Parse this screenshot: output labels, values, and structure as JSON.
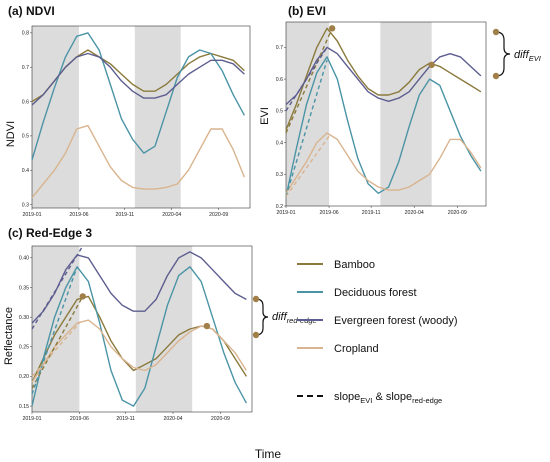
{
  "figure": {
    "xlabel": "Time",
    "ylabel_shared": "Reflectance"
  },
  "colors": {
    "bamboo": "#8b7a3c",
    "deciduous": "#4b94a6",
    "evergreen": "#5d5e8f",
    "cropland": "#d9b48f",
    "shade": "#dcdcdc",
    "marker": "#a08048"
  },
  "legend": {
    "items": [
      {
        "key": "bamboo",
        "label": "Bamboo"
      },
      {
        "key": "deciduous",
        "label": "Deciduous forest"
      },
      {
        "key": "evergreen",
        "label": "Evergreen forest (woody)"
      },
      {
        "key": "cropland",
        "label": "Cropland"
      }
    ],
    "slope_prefix": "slope",
    "slope_sub1": "EVI",
    "slope_amp": " & slope",
    "slope_sub2": "red-edge"
  },
  "annotations": {
    "diff_evi_main": "diff",
    "diff_evi_sub": "EVI",
    "diff_re_main": "diff",
    "diff_re_sub": "red-edge"
  },
  "chart_data": [
    {
      "type": "line",
      "title": "(a) NDVI",
      "ylabel": "NDVI",
      "ylim": [
        0.29,
        0.82
      ],
      "xlim": [
        2019.0,
        2020.95
      ],
      "yticks": [
        0.3,
        0.4,
        0.5,
        0.6,
        0.7,
        0.8
      ],
      "ytick_labels": [
        "0.3",
        "0.4",
        "0.5",
        "0.6",
        "0.7",
        "0.8"
      ],
      "xticks": [
        2019.0,
        2019.42,
        2019.83,
        2020.25,
        2020.67
      ],
      "xtick_labels": [
        "2019-01",
        "2019-06",
        "2019-11",
        "2020-04",
        "2020-09"
      ],
      "shaded": [
        [
          2019.0,
          2019.42
        ],
        [
          2019.92,
          2020.33
        ]
      ],
      "series": [
        {
          "key": "bamboo",
          "x": [
            2019.0,
            2019.1,
            2019.2,
            2019.3,
            2019.4,
            2019.5,
            2019.6,
            2019.7,
            2019.8,
            2019.9,
            2020.0,
            2020.1,
            2020.2,
            2020.3,
            2020.4,
            2020.5,
            2020.6,
            2020.7,
            2020.8,
            2020.9
          ],
          "y": [
            0.6,
            0.62,
            0.66,
            0.7,
            0.73,
            0.75,
            0.73,
            0.71,
            0.68,
            0.65,
            0.63,
            0.63,
            0.65,
            0.68,
            0.71,
            0.73,
            0.74,
            0.73,
            0.72,
            0.69
          ]
        },
        {
          "key": "deciduous",
          "x": [
            2019.0,
            2019.1,
            2019.2,
            2019.3,
            2019.4,
            2019.5,
            2019.6,
            2019.7,
            2019.8,
            2019.9,
            2020.0,
            2020.1,
            2020.2,
            2020.3,
            2020.4,
            2020.5,
            2020.6,
            2020.7,
            2020.8,
            2020.9
          ],
          "y": [
            0.43,
            0.54,
            0.64,
            0.73,
            0.79,
            0.8,
            0.75,
            0.65,
            0.55,
            0.49,
            0.45,
            0.47,
            0.57,
            0.67,
            0.73,
            0.75,
            0.74,
            0.69,
            0.62,
            0.56
          ]
        },
        {
          "key": "evergreen",
          "x": [
            2019.0,
            2019.1,
            2019.2,
            2019.3,
            2019.4,
            2019.5,
            2019.6,
            2019.7,
            2019.8,
            2019.9,
            2020.0,
            2020.1,
            2020.2,
            2020.3,
            2020.4,
            2020.5,
            2020.6,
            2020.7,
            2020.8,
            2020.9
          ],
          "y": [
            0.59,
            0.62,
            0.66,
            0.7,
            0.73,
            0.74,
            0.73,
            0.7,
            0.66,
            0.63,
            0.61,
            0.61,
            0.62,
            0.65,
            0.68,
            0.7,
            0.72,
            0.72,
            0.71,
            0.68
          ]
        },
        {
          "key": "cropland",
          "x": [
            2019.0,
            2019.1,
            2019.2,
            2019.3,
            2019.4,
            2019.5,
            2019.6,
            2019.7,
            2019.8,
            2019.9,
            2020.0,
            2020.1,
            2020.2,
            2020.3,
            2020.4,
            2020.5,
            2020.6,
            2020.7,
            2020.8,
            2020.9
          ],
          "y": [
            0.32,
            0.36,
            0.4,
            0.45,
            0.52,
            0.53,
            0.47,
            0.41,
            0.37,
            0.35,
            0.345,
            0.345,
            0.35,
            0.36,
            0.4,
            0.46,
            0.52,
            0.52,
            0.46,
            0.38
          ]
        }
      ]
    },
    {
      "type": "line",
      "title": "(b) EVI",
      "ylabel": "EVI",
      "ylim": [
        0.2,
        0.78
      ],
      "xlim": [
        2019.0,
        2020.95
      ],
      "yticks": [
        0.2,
        0.3,
        0.4,
        0.5,
        0.6,
        0.7
      ],
      "ytick_labels": [
        "0.2",
        "0.3",
        "0.4",
        "0.5",
        "0.6",
        "0.7"
      ],
      "xticks": [
        2019.0,
        2019.42,
        2019.83,
        2020.25,
        2020.67
      ],
      "xtick_labels": [
        "2019-01",
        "2019-06",
        "2019-11",
        "2020-04",
        "2020-09"
      ],
      "shaded": [
        [
          2019.0,
          2019.42
        ],
        [
          2019.92,
          2020.42
        ]
      ],
      "series": [
        {
          "key": "bamboo",
          "x": [
            2019.0,
            2019.1,
            2019.2,
            2019.3,
            2019.4,
            2019.5,
            2019.6,
            2019.7,
            2019.8,
            2019.9,
            2020.0,
            2020.1,
            2020.2,
            2020.3,
            2020.4,
            2020.5,
            2020.6,
            2020.7,
            2020.8,
            2020.9
          ],
          "y": [
            0.44,
            0.52,
            0.61,
            0.7,
            0.76,
            0.72,
            0.66,
            0.61,
            0.57,
            0.55,
            0.55,
            0.56,
            0.59,
            0.63,
            0.65,
            0.64,
            0.62,
            0.6,
            0.58,
            0.56
          ]
        },
        {
          "key": "deciduous",
          "x": [
            2019.0,
            2019.1,
            2019.2,
            2019.3,
            2019.4,
            2019.5,
            2019.6,
            2019.7,
            2019.8,
            2019.9,
            2020.0,
            2020.1,
            2020.2,
            2020.3,
            2020.4,
            2020.5,
            2020.6,
            2020.7,
            2020.8,
            2020.9
          ],
          "y": [
            0.23,
            0.38,
            0.52,
            0.62,
            0.67,
            0.6,
            0.47,
            0.35,
            0.27,
            0.24,
            0.26,
            0.34,
            0.45,
            0.55,
            0.6,
            0.58,
            0.5,
            0.42,
            0.36,
            0.31
          ]
        },
        {
          "key": "evergreen",
          "x": [
            2019.0,
            2019.1,
            2019.2,
            2019.3,
            2019.4,
            2019.5,
            2019.6,
            2019.7,
            2019.8,
            2019.9,
            2020.0,
            2020.1,
            2020.2,
            2020.3,
            2020.4,
            2020.5,
            2020.6,
            2020.7,
            2020.8,
            2020.9
          ],
          "y": [
            0.52,
            0.55,
            0.6,
            0.66,
            0.7,
            0.68,
            0.64,
            0.6,
            0.56,
            0.54,
            0.53,
            0.54,
            0.56,
            0.6,
            0.64,
            0.67,
            0.68,
            0.67,
            0.64,
            0.61
          ]
        },
        {
          "key": "cropland",
          "x": [
            2019.0,
            2019.1,
            2019.2,
            2019.3,
            2019.4,
            2019.5,
            2019.6,
            2019.7,
            2019.8,
            2019.9,
            2020.0,
            2020.1,
            2020.2,
            2020.3,
            2020.4,
            2020.5,
            2020.6,
            2020.7,
            2020.8,
            2020.9
          ],
          "y": [
            0.24,
            0.29,
            0.34,
            0.4,
            0.43,
            0.41,
            0.36,
            0.31,
            0.28,
            0.26,
            0.25,
            0.25,
            0.26,
            0.28,
            0.3,
            0.35,
            0.41,
            0.41,
            0.37,
            0.32
          ]
        }
      ],
      "markers": [
        {
          "x": 2019.45,
          "y": 0.76
        },
        {
          "x": 2020.42,
          "y": 0.645
        }
      ],
      "slopes": [
        {
          "key": "bamboo",
          "x": [
            2019.0,
            2019.45
          ],
          "y": [
            0.43,
            0.76
          ]
        },
        {
          "key": "deciduous",
          "x": [
            2019.0,
            2019.4
          ],
          "y": [
            0.23,
            0.66
          ]
        },
        {
          "key": "evergreen",
          "x": [
            2019.0,
            2019.4
          ],
          "y": [
            0.5,
            0.7
          ]
        },
        {
          "key": "cropland",
          "x": [
            2019.0,
            2019.42
          ],
          "y": [
            0.23,
            0.42
          ]
        }
      ]
    },
    {
      "type": "line",
      "title": "(c) Red-Edge 3",
      "ylabel": "",
      "ylim": [
        0.14,
        0.42
      ],
      "xlim": [
        2019.0,
        2020.95
      ],
      "yticks": [
        0.15,
        0.2,
        0.25,
        0.3,
        0.35,
        0.4
      ],
      "ytick_labels": [
        "0.15",
        "0.20",
        "0.25",
        "0.30",
        "0.35",
        "0.40"
      ],
      "xticks": [
        2019.0,
        2019.42,
        2019.83,
        2020.25,
        2020.67
      ],
      "xtick_labels": [
        "2019-01",
        "2019-06",
        "2019-11",
        "2020-04",
        "2020-09"
      ],
      "shaded": [
        [
          2019.0,
          2019.42
        ],
        [
          2019.92,
          2020.42
        ]
      ],
      "series": [
        {
          "key": "bamboo",
          "x": [
            2019.0,
            2019.1,
            2019.2,
            2019.3,
            2019.4,
            2019.5,
            2019.6,
            2019.7,
            2019.8,
            2019.9,
            2020.0,
            2020.1,
            2020.2,
            2020.3,
            2020.4,
            2020.5,
            2020.6,
            2020.7,
            2020.8,
            2020.9
          ],
          "y": [
            0.19,
            0.23,
            0.27,
            0.3,
            0.33,
            0.335,
            0.3,
            0.26,
            0.23,
            0.21,
            0.22,
            0.23,
            0.25,
            0.27,
            0.28,
            0.285,
            0.28,
            0.26,
            0.23,
            0.2
          ]
        },
        {
          "key": "deciduous",
          "x": [
            2019.0,
            2019.1,
            2019.2,
            2019.3,
            2019.4,
            2019.5,
            2019.6,
            2019.7,
            2019.8,
            2019.9,
            2020.0,
            2020.1,
            2020.2,
            2020.3,
            2020.4,
            2020.5,
            2020.6,
            2020.7,
            2020.8,
            2020.9
          ],
          "y": [
            0.15,
            0.23,
            0.3,
            0.35,
            0.385,
            0.36,
            0.29,
            0.21,
            0.16,
            0.15,
            0.18,
            0.25,
            0.32,
            0.37,
            0.385,
            0.36,
            0.3,
            0.24,
            0.19,
            0.155
          ]
        },
        {
          "key": "evergreen",
          "x": [
            2019.0,
            2019.1,
            2019.2,
            2019.3,
            2019.4,
            2019.5,
            2019.6,
            2019.7,
            2019.8,
            2019.9,
            2020.0,
            2020.1,
            2020.2,
            2020.3,
            2020.4,
            2020.5,
            2020.6,
            2020.7,
            2020.8,
            2020.9
          ],
          "y": [
            0.29,
            0.31,
            0.34,
            0.38,
            0.405,
            0.4,
            0.37,
            0.34,
            0.32,
            0.31,
            0.31,
            0.33,
            0.37,
            0.4,
            0.41,
            0.4,
            0.38,
            0.36,
            0.34,
            0.33
          ]
        },
        {
          "key": "cropland",
          "x": [
            2019.0,
            2019.1,
            2019.2,
            2019.3,
            2019.4,
            2019.5,
            2019.6,
            2019.7,
            2019.8,
            2019.9,
            2020.0,
            2020.1,
            2020.2,
            2020.3,
            2020.4,
            2020.5,
            2020.6,
            2020.7,
            2020.8,
            2020.9
          ],
          "y": [
            0.19,
            0.22,
            0.25,
            0.27,
            0.29,
            0.295,
            0.28,
            0.25,
            0.23,
            0.215,
            0.21,
            0.22,
            0.24,
            0.26,
            0.275,
            0.285,
            0.28,
            0.26,
            0.24,
            0.21
          ]
        }
      ],
      "markers": [
        {
          "x": 2019.45,
          "y": 0.335
        },
        {
          "x": 2020.55,
          "y": 0.285
        }
      ],
      "slopes": [
        {
          "key": "bamboo",
          "x": [
            2019.0,
            2019.45
          ],
          "y": [
            0.18,
            0.335
          ]
        },
        {
          "key": "deciduous",
          "x": [
            2019.0,
            2019.4
          ],
          "y": [
            0.17,
            0.385
          ]
        },
        {
          "key": "evergreen",
          "x": [
            2019.0,
            2019.45
          ],
          "y": [
            0.28,
            0.42
          ]
        },
        {
          "key": "cropland",
          "x": [
            2019.0,
            2019.42
          ],
          "y": [
            0.2,
            0.29
          ]
        }
      ]
    }
  ]
}
